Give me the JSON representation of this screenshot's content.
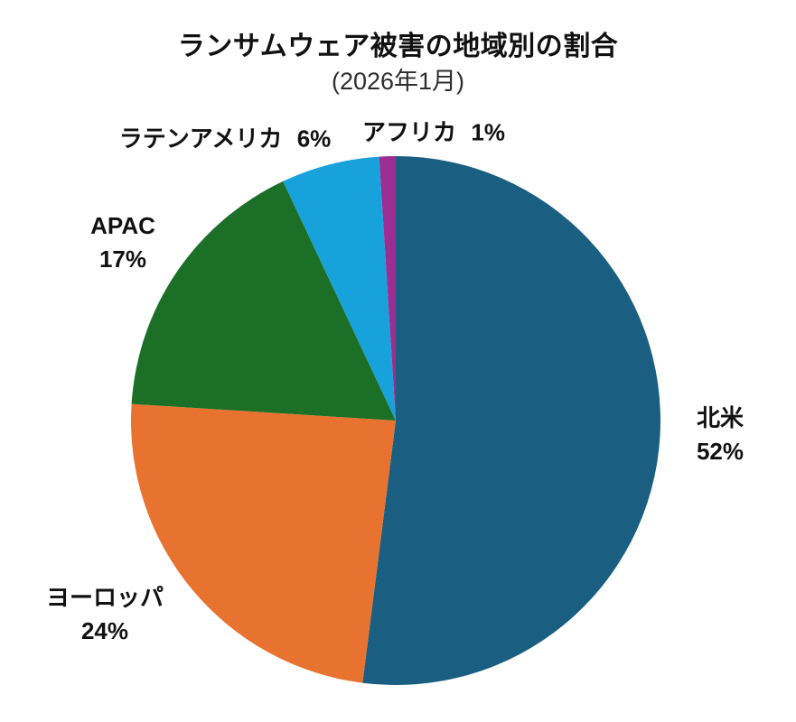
{
  "chart_data": {
    "type": "pie",
    "title": "ランサムウェア被害の地域別の割合",
    "subtitle": "(2026年1月)",
    "start_angle_deg": -90,
    "direction": "clockwise",
    "legend": "none",
    "slices": [
      {
        "key": "north-america",
        "name": "北米",
        "value": 52,
        "pct_label": "52%",
        "color": "#1A5F82"
      },
      {
        "key": "europe",
        "name": "ヨーロッパ",
        "value": 24,
        "pct_label": "24%",
        "color": "#E87330"
      },
      {
        "key": "apac",
        "name": "APAC",
        "value": 17,
        "pct_label": "17%",
        "color": "#1C6F26"
      },
      {
        "key": "latin-america",
        "name": "ラテンアメリカ",
        "value": 6,
        "pct_label": "6%",
        "color": "#18A2DB"
      },
      {
        "key": "africa",
        "name": "アフリカ",
        "value": 1,
        "pct_label": "1%",
        "color": "#9C2D93"
      }
    ],
    "colors": {
      "background": "#FFFFFF",
      "text": "#111111"
    }
  }
}
